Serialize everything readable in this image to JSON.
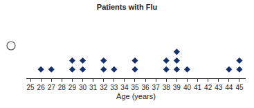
{
  "chart_data": {
    "type": "dot_plot",
    "title": "Patients with Flu",
    "x_label": "Age (years)",
    "x": [
      26,
      27,
      29,
      30,
      32,
      33,
      35,
      38,
      39,
      40,
      44,
      45
    ],
    "values": [
      1,
      1,
      2,
      2,
      2,
      1,
      2,
      2,
      3,
      1,
      1,
      2
    ],
    "color": "#14306b",
    "marker": "diamond",
    "xlim": [
      24.6,
      45.6
    ],
    "xticks": [
      25,
      26,
      27,
      28,
      29,
      30,
      31,
      32,
      33,
      34,
      35,
      36,
      37,
      38,
      39,
      40,
      41,
      42,
      43,
      44,
      45
    ],
    "grid": false,
    "tick_labels": "x"
  }
}
